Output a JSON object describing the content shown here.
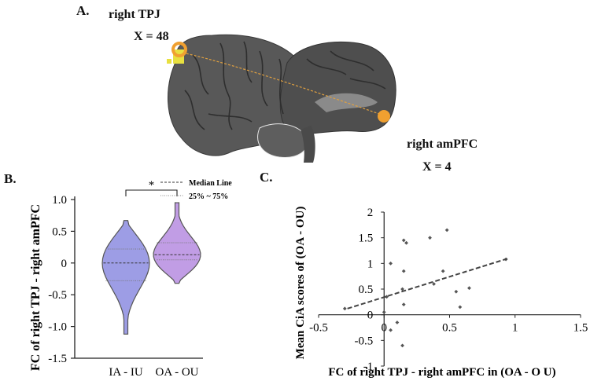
{
  "panel_labels": {
    "a": "A.",
    "b": "B.",
    "c": "C."
  },
  "brain_labels": {
    "tpj": "right TPJ",
    "tpj_coord": "X = 48",
    "ampfc": "right amPFC",
    "ampfc_coord": "X = 4"
  },
  "colors": {
    "roi": "#f0a030",
    "violin_left": "#8c8ce0",
    "violin_right": "#b68ce0",
    "trend": "#444444"
  },
  "chart_data": [
    {
      "type": "violin",
      "ylabel": "FC of right TPJ - right amPFC",
      "categories": [
        "IA - IU",
        "OA - OU"
      ],
      "yticks": [
        "1.0",
        "0.5",
        "0",
        "-0.5",
        "-1.0",
        "-1.5"
      ],
      "ylim": [
        -1.5,
        1.0
      ],
      "series": [
        {
          "category": "IA - IU",
          "min": -1.12,
          "q1": -0.28,
          "median": 0.0,
          "q3": 0.22,
          "max": 0.67
        },
        {
          "category": "OA - OU",
          "min": -0.32,
          "q1": 0.05,
          "median": 0.13,
          "q3": 0.32,
          "max": 0.95
        }
      ],
      "significance": "*",
      "legend": {
        "median": "Median Line",
        "quartiles": "25% ~ 75%"
      },
      "legend_position": "top-right"
    },
    {
      "type": "scatter",
      "xlabel": "FC of right TPJ - right amPFC in (OA - O U)",
      "ylabel": "Mean CiA scores of (OA - OU)",
      "xticks": [
        "-0.5",
        "0",
        "0.5",
        "1",
        "1.5"
      ],
      "yticks": [
        "2",
        "1.5",
        "1",
        "0.5",
        "0",
        "-0.5",
        "-1"
      ],
      "xlim": [
        -0.5,
        1.5
      ],
      "ylim": [
        -1,
        2
      ],
      "points": [
        [
          -0.3,
          0.12
        ],
        [
          0.0,
          0.05
        ],
        [
          0.02,
          0.35
        ],
        [
          0.05,
          1.0
        ],
        [
          0.05,
          -0.3
        ],
        [
          0.1,
          -0.15
        ],
        [
          0.14,
          0.5
        ],
        [
          0.15,
          0.2
        ],
        [
          0.14,
          -0.6
        ],
        [
          0.15,
          0.85
        ],
        [
          0.15,
          1.45
        ],
        [
          0.17,
          1.4
        ],
        [
          0.35,
          1.5
        ],
        [
          0.38,
          0.6
        ],
        [
          0.45,
          0.85
        ],
        [
          0.48,
          1.65
        ],
        [
          0.55,
          0.45
        ],
        [
          0.58,
          0.15
        ],
        [
          0.65,
          0.52
        ],
        [
          0.93,
          1.08
        ]
      ],
      "trendline": {
        "x": [
          -0.28,
          0.95
        ],
        "y": [
          0.12,
          1.1
        ]
      }
    }
  ]
}
